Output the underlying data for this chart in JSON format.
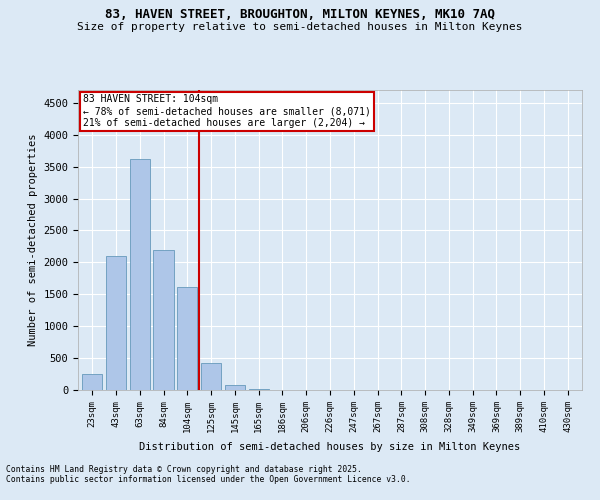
{
  "title_line1": "83, HAVEN STREET, BROUGHTON, MILTON KEYNES, MK10 7AQ",
  "title_line2": "Size of property relative to semi-detached houses in Milton Keynes",
  "xlabel": "Distribution of semi-detached houses by size in Milton Keynes",
  "ylabel": "Number of semi-detached properties",
  "categories": [
    "23sqm",
    "43sqm",
    "63sqm",
    "84sqm",
    "104sqm",
    "125sqm",
    "145sqm",
    "165sqm",
    "186sqm",
    "206sqm",
    "226sqm",
    "247sqm",
    "267sqm",
    "287sqm",
    "308sqm",
    "328sqm",
    "349sqm",
    "369sqm",
    "389sqm",
    "410sqm",
    "430sqm"
  ],
  "values": [
    250,
    2100,
    3620,
    2200,
    1620,
    420,
    75,
    20,
    5,
    0,
    0,
    0,
    0,
    0,
    0,
    0,
    0,
    0,
    0,
    0,
    0
  ],
  "bar_color": "#aec6e8",
  "bar_edge_color": "#6699bb",
  "redline_x": 4.5,
  "annotation_line1": "83 HAVEN STREET: 104sqm",
  "annotation_line2": "← 78% of semi-detached houses are smaller (8,071)",
  "annotation_line3": "21% of semi-detached houses are larger (2,204) →",
  "ylim": [
    0,
    4700
  ],
  "yticks": [
    0,
    500,
    1000,
    1500,
    2000,
    2500,
    3000,
    3500,
    4000,
    4500
  ],
  "footnote_line1": "Contains HM Land Registry data © Crown copyright and database right 2025.",
  "footnote_line2": "Contains public sector information licensed under the Open Government Licence v3.0.",
  "bg_color": "#dce9f5",
  "plot_bg_color": "#dce9f5",
  "grid_color": "#ffffff",
  "annotation_box_color": "#ffffff",
  "annotation_box_edge": "#cc0000",
  "redline_color": "#cc0000"
}
